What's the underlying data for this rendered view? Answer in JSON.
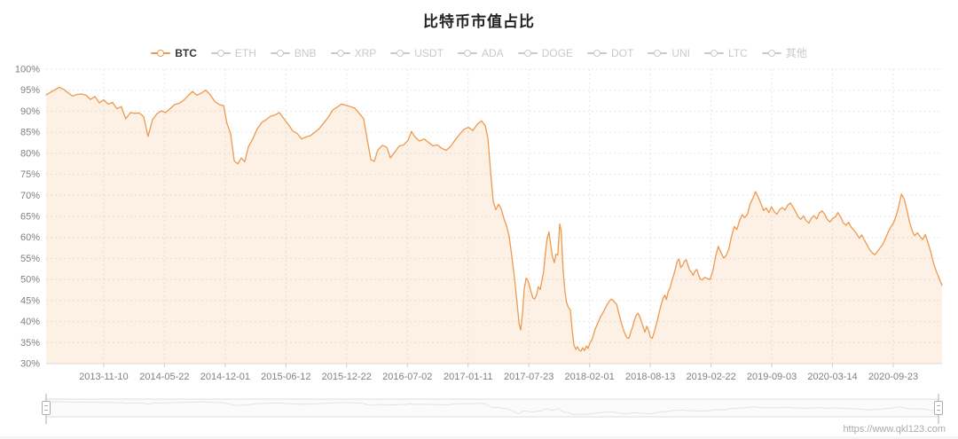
{
  "header": {
    "title": "比特币市值占比"
  },
  "legend": {
    "items": [
      {
        "label": "BTC",
        "active": true
      },
      {
        "label": "ETH",
        "active": false
      },
      {
        "label": "BNB",
        "active": false
      },
      {
        "label": "XRP",
        "active": false
      },
      {
        "label": "USDT",
        "active": false
      },
      {
        "label": "ADA",
        "active": false
      },
      {
        "label": "DOGE",
        "active": false
      },
      {
        "label": "DOT",
        "active": false
      },
      {
        "label": "UNI",
        "active": false
      },
      {
        "label": "LTC",
        "active": false
      },
      {
        "label": "其他",
        "active": false
      }
    ]
  },
  "footer": {
    "watermark": "https://www.qkl123.com"
  },
  "colors": {
    "accent": "#ee9a4e",
    "area_fill": "rgba(238,154,78,0.14)",
    "inactive_legend": "#c9c9c9",
    "active_legend_text": "#333333",
    "axis_text": "#818181",
    "grid": "#e6e6e6",
    "axis_line": "#dcdcdc",
    "tick_mark": "#cccccc",
    "slider_border": "#dddddd",
    "slider_fill": "#fbfbfb",
    "slider_preview": "#e3e3e3",
    "slider_handle_border": "#a8adb5",
    "slider_handle_fill": "#ffffff",
    "watermark_text": "#aaaaaa"
  },
  "chart_data": {
    "type": "area",
    "title": "比特币市值占比",
    "series_name": "BTC",
    "unit": "%",
    "ylim": [
      30,
      100
    ],
    "ytick_step": 5,
    "ytick_labels": [
      "100%",
      "95%",
      "90%",
      "85%",
      "80%",
      "75%",
      "70%",
      "65%",
      "60%",
      "55%",
      "50%",
      "45%",
      "40%",
      "35%",
      "30%"
    ],
    "xtick_labels": [
      "2013-11-10",
      "2014-05-22",
      "2014-12-01",
      "2015-06-12",
      "2015-12-22",
      "2016-07-02",
      "2017-01-11",
      "2017-07-23",
      "2018-02-01",
      "2018-08-13",
      "2019-02-22",
      "2019-09-03",
      "2020-03-14",
      "2020-09-23"
    ],
    "grid": true,
    "legend_position": "top",
    "points": [
      [
        "2013-05-11",
        93.9
      ],
      [
        "2013-05-25",
        94.5
      ],
      [
        "2013-06-08",
        95.1
      ],
      [
        "2013-06-22",
        95.7
      ],
      [
        "2013-07-06",
        95.2
      ],
      [
        "2013-07-20",
        94.4
      ],
      [
        "2013-08-03",
        93.6
      ],
      [
        "2013-08-17",
        94.0
      ],
      [
        "2013-08-31",
        94.1
      ],
      [
        "2013-09-15",
        93.8
      ],
      [
        "2013-09-29",
        92.8
      ],
      [
        "2013-10-13",
        93.5
      ],
      [
        "2013-10-27",
        92.0
      ],
      [
        "2013-11-10",
        92.7
      ],
      [
        "2013-11-24",
        91.7
      ],
      [
        "2013-12-08",
        92.1
      ],
      [
        "2013-12-22",
        90.6
      ],
      [
        "2014-01-05",
        91.1
      ],
      [
        "2014-01-19",
        88.2
      ],
      [
        "2014-02-03",
        89.7
      ],
      [
        "2014-02-17",
        89.5
      ],
      [
        "2014-03-03",
        89.6
      ],
      [
        "2014-03-17",
        88.7
      ],
      [
        "2014-03-31",
        84.0
      ],
      [
        "2014-04-14",
        88.0
      ],
      [
        "2014-04-28",
        89.4
      ],
      [
        "2014-05-12",
        90.1
      ],
      [
        "2014-05-26",
        89.7
      ],
      [
        "2014-06-10",
        90.7
      ],
      [
        "2014-06-24",
        91.6
      ],
      [
        "2014-07-08",
        91.9
      ],
      [
        "2014-07-22",
        92.6
      ],
      [
        "2014-08-05",
        93.7
      ],
      [
        "2014-08-19",
        94.7
      ],
      [
        "2014-09-02",
        93.8
      ],
      [
        "2014-09-16",
        94.3
      ],
      [
        "2014-09-30",
        95.0
      ],
      [
        "2014-10-14",
        94.0
      ],
      [
        "2014-10-29",
        92.3
      ],
      [
        "2014-11-12",
        91.6
      ],
      [
        "2014-11-26",
        91.3
      ],
      [
        "2014-12-07",
        87.0
      ],
      [
        "2014-12-18",
        84.8
      ],
      [
        "2014-12-30",
        78.2
      ],
      [
        "2015-01-10",
        77.5
      ],
      [
        "2015-01-21",
        78.9
      ],
      [
        "2015-02-01",
        78.0
      ],
      [
        "2015-02-13",
        81.6
      ],
      [
        "2015-02-27",
        83.5
      ],
      [
        "2015-03-13",
        85.8
      ],
      [
        "2015-03-27",
        87.3
      ],
      [
        "2015-04-10",
        88.0
      ],
      [
        "2015-04-24",
        88.8
      ],
      [
        "2015-05-08",
        89.1
      ],
      [
        "2015-05-22",
        89.7
      ],
      [
        "2015-06-05",
        88.3
      ],
      [
        "2015-06-20",
        86.8
      ],
      [
        "2015-07-04",
        85.3
      ],
      [
        "2015-07-18",
        84.7
      ],
      [
        "2015-08-01",
        83.4
      ],
      [
        "2015-08-15",
        83.9
      ],
      [
        "2015-08-29",
        84.2
      ],
      [
        "2015-09-12",
        85.0
      ],
      [
        "2015-09-26",
        85.9
      ],
      [
        "2015-10-10",
        87.2
      ],
      [
        "2015-10-24",
        88.5
      ],
      [
        "2015-11-08",
        90.3
      ],
      [
        "2015-11-22",
        91.0
      ],
      [
        "2015-12-06",
        91.7
      ],
      [
        "2015-12-20",
        91.4
      ],
      [
        "2016-01-03",
        91.1
      ],
      [
        "2016-01-17",
        90.7
      ],
      [
        "2016-01-31",
        89.5
      ],
      [
        "2016-02-14",
        88.2
      ],
      [
        "2016-02-26",
        83.0
      ],
      [
        "2016-03-08",
        78.5
      ],
      [
        "2016-03-19",
        78.1
      ],
      [
        "2016-03-30",
        80.8
      ],
      [
        "2016-04-14",
        81.9
      ],
      [
        "2016-04-28",
        81.4
      ],
      [
        "2016-05-09",
        78.9
      ],
      [
        "2016-05-23",
        80.3
      ],
      [
        "2016-06-06",
        81.7
      ],
      [
        "2016-06-20",
        82.0
      ],
      [
        "2016-07-04",
        83.1
      ],
      [
        "2016-07-15",
        85.2
      ],
      [
        "2016-07-27",
        83.8
      ],
      [
        "2016-08-10",
        82.9
      ],
      [
        "2016-08-24",
        83.4
      ],
      [
        "2016-09-07",
        82.6
      ],
      [
        "2016-09-21",
        81.8
      ],
      [
        "2016-10-05",
        82.0
      ],
      [
        "2016-10-19",
        81.2
      ],
      [
        "2016-11-02",
        80.7
      ],
      [
        "2016-11-16",
        81.6
      ],
      [
        "2016-12-01",
        83.2
      ],
      [
        "2016-12-15",
        84.5
      ],
      [
        "2016-12-29",
        85.7
      ],
      [
        "2017-01-12",
        86.2
      ],
      [
        "2017-01-26",
        85.4
      ],
      [
        "2017-02-09",
        86.9
      ],
      [
        "2017-02-23",
        87.7
      ],
      [
        "2017-03-07",
        86.5
      ],
      [
        "2017-03-15",
        83.5
      ],
      [
        "2017-03-23",
        76.0
      ],
      [
        "2017-04-01",
        68.5
      ],
      [
        "2017-04-09",
        66.6
      ],
      [
        "2017-04-18",
        67.9
      ],
      [
        "2017-04-26",
        66.8
      ],
      [
        "2017-05-05",
        64.4
      ],
      [
        "2017-05-13",
        62.8
      ],
      [
        "2017-05-22",
        60.0
      ],
      [
        "2017-05-30",
        55.5
      ],
      [
        "2017-06-08",
        50.0
      ],
      [
        "2017-06-16",
        44.0
      ],
      [
        "2017-06-22",
        39.5
      ],
      [
        "2017-06-27",
        38.0
      ],
      [
        "2017-07-03",
        42.0
      ],
      [
        "2017-07-08",
        47.5
      ],
      [
        "2017-07-14",
        50.3
      ],
      [
        "2017-07-20",
        49.8
      ],
      [
        "2017-07-25",
        48.5
      ],
      [
        "2017-07-31",
        46.8
      ],
      [
        "2017-08-05",
        45.6
      ],
      [
        "2017-08-11",
        45.4
      ],
      [
        "2017-08-17",
        46.5
      ],
      [
        "2017-08-22",
        48.3
      ],
      [
        "2017-08-28",
        47.6
      ],
      [
        "2017-09-02",
        49.5
      ],
      [
        "2017-09-08",
        52.0
      ],
      [
        "2017-09-14",
        56.5
      ],
      [
        "2017-09-19",
        59.8
      ],
      [
        "2017-09-25",
        61.3
      ],
      [
        "2017-10-01",
        58.0
      ],
      [
        "2017-10-06",
        55.5
      ],
      [
        "2017-10-12",
        54.0
      ],
      [
        "2017-10-17",
        56.0
      ],
      [
        "2017-10-23",
        55.8
      ],
      [
        "2017-10-29",
        63.2
      ],
      [
        "2017-11-03",
        61.5
      ],
      [
        "2017-11-09",
        52.0
      ],
      [
        "2017-11-15",
        47.0
      ],
      [
        "2017-11-20",
        44.5
      ],
      [
        "2017-11-26",
        43.3
      ],
      [
        "2017-12-02",
        42.8
      ],
      [
        "2017-12-07",
        38.5
      ],
      [
        "2017-12-13",
        34.5
      ],
      [
        "2017-12-19",
        33.4
      ],
      [
        "2017-12-24",
        34.0
      ],
      [
        "2017-12-30",
        33.2
      ],
      [
        "2018-01-05",
        33.0
      ],
      [
        "2018-01-10",
        33.8
      ],
      [
        "2018-01-16",
        33.1
      ],
      [
        "2018-01-22",
        34.2
      ],
      [
        "2018-01-27",
        33.6
      ],
      [
        "2018-02-02",
        34.9
      ],
      [
        "2018-02-08",
        35.6
      ],
      [
        "2018-02-13",
        36.8
      ],
      [
        "2018-02-19",
        38.2
      ],
      [
        "2018-02-25",
        39.3
      ],
      [
        "2018-03-02",
        40.1
      ],
      [
        "2018-03-08",
        41.2
      ],
      [
        "2018-03-13",
        41.8
      ],
      [
        "2018-03-19",
        42.6
      ],
      [
        "2018-03-25",
        43.5
      ],
      [
        "2018-03-30",
        44.2
      ],
      [
        "2018-04-05",
        44.9
      ],
      [
        "2018-04-11",
        45.3
      ],
      [
        "2018-04-16",
        45.1
      ],
      [
        "2018-04-22",
        44.5
      ],
      [
        "2018-04-28",
        44.1
      ],
      [
        "2018-05-03",
        42.5
      ],
      [
        "2018-05-09",
        40.8
      ],
      [
        "2018-05-15",
        39.2
      ],
      [
        "2018-05-20",
        38.0
      ],
      [
        "2018-05-26",
        36.8
      ],
      [
        "2018-06-01",
        36.1
      ],
      [
        "2018-06-06",
        36.0
      ],
      [
        "2018-06-12",
        37.5
      ],
      [
        "2018-06-18",
        38.8
      ],
      [
        "2018-06-23",
        40.2
      ],
      [
        "2018-06-29",
        41.5
      ],
      [
        "2018-07-05",
        42.0
      ],
      [
        "2018-07-10",
        41.2
      ],
      [
        "2018-07-16",
        40.0
      ],
      [
        "2018-07-22",
        38.6
      ],
      [
        "2018-07-27",
        37.5
      ],
      [
        "2018-08-02",
        38.9
      ],
      [
        "2018-08-08",
        37.8
      ],
      [
        "2018-08-13",
        36.3
      ],
      [
        "2018-08-19",
        36.0
      ],
      [
        "2018-08-25",
        37.4
      ],
      [
        "2018-08-30",
        38.8
      ],
      [
        "2018-09-05",
        40.5
      ],
      [
        "2018-09-11",
        42.4
      ],
      [
        "2018-09-16",
        43.9
      ],
      [
        "2018-09-22",
        45.5
      ],
      [
        "2018-09-28",
        46.3
      ],
      [
        "2018-10-03",
        45.2
      ],
      [
        "2018-10-09",
        47.2
      ],
      [
        "2018-10-15",
        48.0
      ],
      [
        "2018-10-20",
        49.6
      ],
      [
        "2018-10-26",
        51.0
      ],
      [
        "2018-11-01",
        52.6
      ],
      [
        "2018-11-06",
        54.2
      ],
      [
        "2018-11-12",
        54.9
      ],
      [
        "2018-11-18",
        52.8
      ],
      [
        "2018-11-23",
        53.3
      ],
      [
        "2018-11-29",
        54.3
      ],
      [
        "2018-12-05",
        54.7
      ],
      [
        "2018-12-10",
        53.5
      ],
      [
        "2018-12-16",
        52.2
      ],
      [
        "2018-12-22",
        51.7
      ],
      [
        "2018-12-27",
        51.0
      ],
      [
        "2019-01-02",
        52.0
      ],
      [
        "2019-01-08",
        52.4
      ],
      [
        "2019-01-13",
        51.2
      ],
      [
        "2019-01-19",
        50.1
      ],
      [
        "2019-01-25",
        49.9
      ],
      [
        "2019-02-02",
        50.5
      ],
      [
        "2019-02-11",
        50.2
      ],
      [
        "2019-02-19",
        50.0
      ],
      [
        "2019-02-28",
        52.1
      ],
      [
        "2019-03-08",
        55.4
      ],
      [
        "2019-03-17",
        57.9
      ],
      [
        "2019-03-25",
        56.5
      ],
      [
        "2019-04-03",
        55.1
      ],
      [
        "2019-04-11",
        55.7
      ],
      [
        "2019-04-20",
        57.3
      ],
      [
        "2019-04-28",
        60.3
      ],
      [
        "2019-05-07",
        62.6
      ],
      [
        "2019-05-15",
        61.9
      ],
      [
        "2019-05-24",
        64.1
      ],
      [
        "2019-06-01",
        65.4
      ],
      [
        "2019-06-09",
        64.7
      ],
      [
        "2019-06-18",
        65.6
      ],
      [
        "2019-06-26",
        67.9
      ],
      [
        "2019-07-05",
        69.3
      ],
      [
        "2019-07-13",
        70.9
      ],
      [
        "2019-07-22",
        69.6
      ],
      [
        "2019-07-30",
        68.1
      ],
      [
        "2019-08-08",
        66.4
      ],
      [
        "2019-08-16",
        67.0
      ],
      [
        "2019-08-25",
        65.9
      ],
      [
        "2019-09-02",
        67.3
      ],
      [
        "2019-09-11",
        66.1
      ],
      [
        "2019-09-19",
        65.5
      ],
      [
        "2019-09-28",
        66.6
      ],
      [
        "2019-10-06",
        67.1
      ],
      [
        "2019-10-15",
        66.5
      ],
      [
        "2019-10-23",
        67.6
      ],
      [
        "2019-11-01",
        68.2
      ],
      [
        "2019-11-09",
        67.3
      ],
      [
        "2019-11-17",
        66.2
      ],
      [
        "2019-11-26",
        64.9
      ],
      [
        "2019-12-04",
        64.3
      ],
      [
        "2019-12-13",
        65.1
      ],
      [
        "2019-12-21",
        64.0
      ],
      [
        "2019-12-30",
        63.4
      ],
      [
        "2020-01-07",
        64.6
      ],
      [
        "2020-01-15",
        65.2
      ],
      [
        "2020-01-24",
        64.4
      ],
      [
        "2020-02-01",
        65.8
      ],
      [
        "2020-02-10",
        66.3
      ],
      [
        "2020-02-18",
        65.5
      ],
      [
        "2020-02-27",
        64.2
      ],
      [
        "2020-03-06",
        63.7
      ],
      [
        "2020-03-14",
        64.5
      ],
      [
        "2020-03-23",
        64.9
      ],
      [
        "2020-03-31",
        65.9
      ],
      [
        "2020-04-09",
        64.8
      ],
      [
        "2020-04-17",
        63.5
      ],
      [
        "2020-04-26",
        62.9
      ],
      [
        "2020-05-04",
        63.6
      ],
      [
        "2020-05-12",
        62.5
      ],
      [
        "2020-05-21",
        61.7
      ],
      [
        "2020-05-29",
        60.9
      ],
      [
        "2020-06-07",
        59.8
      ],
      [
        "2020-06-15",
        60.6
      ],
      [
        "2020-06-24",
        59.3
      ],
      [
        "2020-07-02",
        58.2
      ],
      [
        "2020-07-10",
        57.1
      ],
      [
        "2020-07-19",
        56.3
      ],
      [
        "2020-07-27",
        55.9
      ],
      [
        "2020-08-04",
        56.7
      ],
      [
        "2020-08-13",
        57.6
      ],
      [
        "2020-08-21",
        58.4
      ],
      [
        "2020-08-30",
        59.9
      ],
      [
        "2020-09-07",
        61.3
      ],
      [
        "2020-09-16",
        62.6
      ],
      [
        "2020-09-24",
        63.5
      ],
      [
        "2020-10-02",
        65.1
      ],
      [
        "2020-10-11",
        67.6
      ],
      [
        "2020-10-19",
        70.3
      ],
      [
        "2020-10-28",
        69.1
      ],
      [
        "2020-11-05",
        66.6
      ],
      [
        "2020-11-13",
        63.9
      ],
      [
        "2020-11-22",
        61.6
      ],
      [
        "2020-11-30",
        60.4
      ],
      [
        "2020-12-09",
        61.1
      ],
      [
        "2020-12-17",
        60.2
      ],
      [
        "2020-12-25",
        59.5
      ],
      [
        "2021-01-03",
        60.7
      ],
      [
        "2021-01-11",
        58.9
      ],
      [
        "2021-01-20",
        56.6
      ],
      [
        "2021-01-28",
        54.1
      ],
      [
        "2021-02-05",
        52.3
      ],
      [
        "2021-02-14",
        50.6
      ],
      [
        "2021-02-25",
        48.6
      ]
    ]
  }
}
